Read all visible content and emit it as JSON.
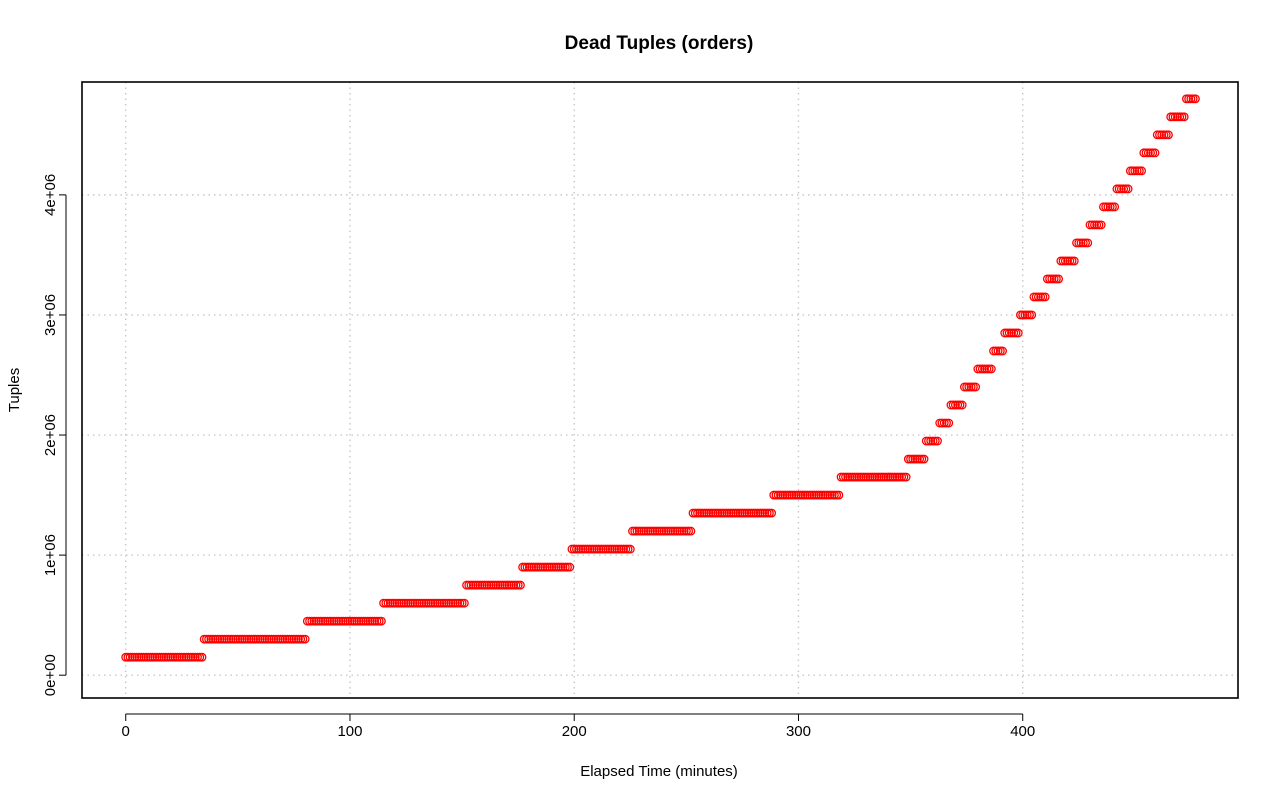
{
  "chart_data": {
    "type": "scatter",
    "title": "Dead Tuples (orders)",
    "xlabel": "Elapsed Time (minutes)",
    "ylabel": "Tuples",
    "xlim": [
      -19.5,
      496
    ],
    "ylim": [
      -190000,
      4940000
    ],
    "x_ticks": [
      0,
      100,
      200,
      300,
      400
    ],
    "x_tick_labels": [
      "0",
      "100",
      "200",
      "300",
      "400"
    ],
    "y_ticks": [
      0,
      1000000,
      2000000,
      3000000,
      4000000
    ],
    "y_tick_labels": [
      "0e+00",
      "1e+06",
      "2e+06",
      "3e+06",
      "4e+06"
    ],
    "grid": true,
    "marker": "open-circle",
    "color": "#ff0000",
    "x_step": 1,
    "steps": [
      {
        "x_start": 0,
        "x_end": 34,
        "y": 150000
      },
      {
        "x_start": 35,
        "x_end": 80,
        "y": 300000
      },
      {
        "x_start": 81,
        "x_end": 114,
        "y": 450000
      },
      {
        "x_start": 115,
        "x_end": 151,
        "y": 600000
      },
      {
        "x_start": 152,
        "x_end": 176,
        "y": 750000
      },
      {
        "x_start": 177,
        "x_end": 198,
        "y": 900000
      },
      {
        "x_start": 199,
        "x_end": 225,
        "y": 1050000
      },
      {
        "x_start": 226,
        "x_end": 252,
        "y": 1200000
      },
      {
        "x_start": 253,
        "x_end": 288,
        "y": 1350000
      },
      {
        "x_start": 289,
        "x_end": 318,
        "y": 1500000
      },
      {
        "x_start": 319,
        "x_end": 348,
        "y": 1650000
      },
      {
        "x_start": 349,
        "x_end": 356,
        "y": 1800000
      },
      {
        "x_start": 357,
        "x_end": 362,
        "y": 1950000
      },
      {
        "x_start": 363,
        "x_end": 367,
        "y": 2100000
      },
      {
        "x_start": 368,
        "x_end": 373,
        "y": 2250000
      },
      {
        "x_start": 374,
        "x_end": 379,
        "y": 2400000
      },
      {
        "x_start": 380,
        "x_end": 386,
        "y": 2550000
      },
      {
        "x_start": 387,
        "x_end": 391,
        "y": 2700000
      },
      {
        "x_start": 392,
        "x_end": 398,
        "y": 2850000
      },
      {
        "x_start": 399,
        "x_end": 404,
        "y": 3000000
      },
      {
        "x_start": 405,
        "x_end": 410,
        "y": 3150000
      },
      {
        "x_start": 411,
        "x_end": 416,
        "y": 3300000
      },
      {
        "x_start": 417,
        "x_end": 423,
        "y": 3450000
      },
      {
        "x_start": 424,
        "x_end": 429,
        "y": 3600000
      },
      {
        "x_start": 430,
        "x_end": 435,
        "y": 3750000
      },
      {
        "x_start": 436,
        "x_end": 441,
        "y": 3900000
      },
      {
        "x_start": 442,
        "x_end": 447,
        "y": 4050000
      },
      {
        "x_start": 448,
        "x_end": 453,
        "y": 4200000
      },
      {
        "x_start": 454,
        "x_end": 459,
        "y": 4350000
      },
      {
        "x_start": 460,
        "x_end": 465,
        "y": 4500000
      },
      {
        "x_start": 466,
        "x_end": 472,
        "y": 4650000
      },
      {
        "x_start": 473,
        "x_end": 477,
        "y": 4800000
      }
    ]
  }
}
